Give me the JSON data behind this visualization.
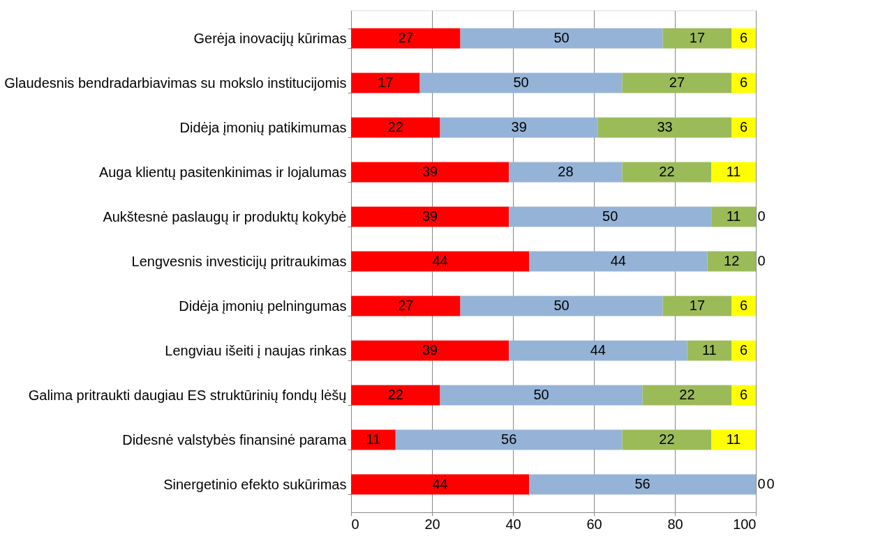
{
  "chart_data": {
    "type": "bar",
    "orientation": "horizontal",
    "stacked": true,
    "data_labels": true,
    "grid": "x",
    "categories": [
      "Gerėja inovacijų kūrimas",
      "Glaudesnis bendradarbiavimas su mokslo institucijomis",
      "Didėja įmonių patikimumas",
      "Auga klientų pasitenkinimas ir lojalumas",
      "Aukštesnė paslaugų ir produktų kokybė",
      "Lengvesnis investicijų pritraukimas",
      "Didėja įmonių  pelningumas",
      "Lengviau išeiti į naujas rinkas",
      "Galima pritraukti daugiau ES struktūrinių fondų lėšų",
      "Didesnė valstybės finansinė parama",
      "Sinergetinio efekto sukūrimas"
    ],
    "series": [
      {
        "color": "#ff0000",
        "values": [
          27,
          17,
          22,
          39,
          39,
          44,
          27,
          39,
          22,
          11,
          44
        ]
      },
      {
        "color": "#95b3d7",
        "values": [
          50,
          50,
          39,
          28,
          50,
          44,
          50,
          44,
          50,
          56,
          56
        ]
      },
      {
        "color": "#9bbb59",
        "values": [
          17,
          27,
          33,
          22,
          11,
          12,
          17,
          11,
          22,
          22,
          0
        ]
      },
      {
        "color": "#ffff00",
        "values": [
          6,
          6,
          6,
          11,
          0,
          0,
          6,
          6,
          6,
          11,
          0
        ]
      }
    ],
    "xlim": [
      0,
      100
    ],
    "xticks": [
      0,
      20,
      40,
      60,
      80,
      100
    ]
  }
}
